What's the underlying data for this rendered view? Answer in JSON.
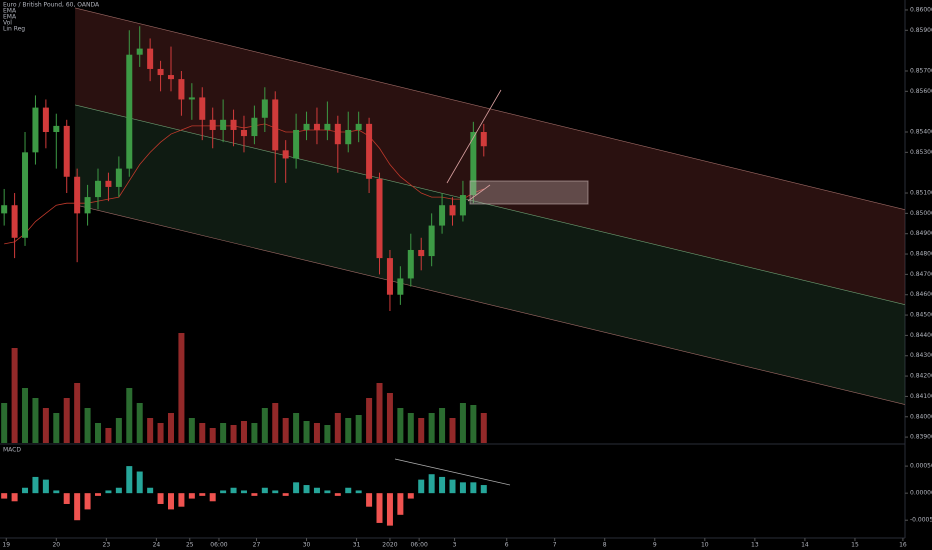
{
  "chart_data": [
    {
      "type": "candlestick",
      "legend": [
        "Euro / British Pound, 60, OANDA",
        "EMA",
        "EMA",
        "Vol",
        "Lin Reg"
      ],
      "up_color": "#3d9a45",
      "down_color": "#d13b3b",
      "x": [
        2,
        7,
        12,
        17,
        22,
        27,
        32,
        37,
        42,
        47,
        52,
        57,
        62,
        67,
        72,
        77,
        82,
        87,
        92,
        97,
        102,
        107,
        112,
        117,
        122,
        127,
        132,
        137,
        142,
        147,
        152,
        157,
        162,
        167,
        172,
        177,
        182,
        187,
        192,
        197,
        202,
        207,
        212,
        217,
        222,
        227,
        232
      ],
      "open": [
        0.85,
        0.8504,
        0.8488,
        0.853,
        0.8552,
        0.854,
        0.8543,
        0.8518,
        0.85,
        0.8508,
        0.8516,
        0.8513,
        0.8522,
        0.8578,
        0.8581,
        0.8571,
        0.8568,
        0.8566,
        0.8556,
        0.8557,
        0.8546,
        0.8541,
        0.8546,
        0.8541,
        0.8538,
        0.8547,
        0.8556,
        0.8531,
        0.8527,
        0.8541,
        0.8544,
        0.8541,
        0.8544,
        0.8534,
        0.8541,
        0.8544,
        0.8517,
        0.8478,
        0.846,
        0.8468,
        0.8482,
        0.8479,
        0.8494,
        0.8504,
        0.8499,
        0.8509,
        0.854
      ],
      "high": [
        0.8512,
        0.851,
        0.854,
        0.8558,
        0.8556,
        0.8549,
        0.8546,
        0.8522,
        0.8514,
        0.8522,
        0.852,
        0.8528,
        0.859,
        0.8592,
        0.8586,
        0.8575,
        0.8582,
        0.857,
        0.8564,
        0.8562,
        0.8552,
        0.8556,
        0.8551,
        0.8548,
        0.8553,
        0.8562,
        0.856,
        0.8536,
        0.8549,
        0.855,
        0.8552,
        0.8555,
        0.8548,
        0.855,
        0.855,
        0.8547,
        0.852,
        0.8482,
        0.8474,
        0.849,
        0.8488,
        0.85,
        0.851,
        0.8508,
        0.8516,
        0.8545,
        0.8544
      ],
      "low": [
        0.8494,
        0.8478,
        0.8484,
        0.8524,
        0.8532,
        0.8522,
        0.851,
        0.8476,
        0.8494,
        0.8502,
        0.8506,
        0.8508,
        0.8518,
        0.8572,
        0.8565,
        0.856,
        0.856,
        0.8548,
        0.8546,
        0.8536,
        0.8532,
        0.8535,
        0.8533,
        0.853,
        0.8534,
        0.854,
        0.8515,
        0.8515,
        0.8522,
        0.8536,
        0.8534,
        0.8536,
        0.852,
        0.853,
        0.8535,
        0.851,
        0.847,
        0.8452,
        0.8455,
        0.8464,
        0.8472,
        0.8474,
        0.849,
        0.8494,
        0.8496,
        0.8505,
        0.8528
      ],
      "close": [
        0.8504,
        0.8488,
        0.853,
        0.8552,
        0.854,
        0.8543,
        0.8518,
        0.85,
        0.8508,
        0.8516,
        0.8513,
        0.8522,
        0.8578,
        0.8581,
        0.8571,
        0.8568,
        0.8566,
        0.8556,
        0.8557,
        0.8546,
        0.8541,
        0.8546,
        0.8541,
        0.8538,
        0.8547,
        0.8556,
        0.8531,
        0.8527,
        0.8541,
        0.8544,
        0.8541,
        0.8544,
        0.8534,
        0.8541,
        0.8544,
        0.8517,
        0.8478,
        0.846,
        0.8468,
        0.8482,
        0.8479,
        0.8494,
        0.8504,
        0.8499,
        0.8509,
        0.854,
        0.8533
      ],
      "volume": [
        40,
        95,
        55,
        45,
        35,
        30,
        45,
        60,
        35,
        20,
        15,
        25,
        55,
        40,
        25,
        20,
        30,
        110,
        25,
        20,
        15,
        20,
        18,
        22,
        20,
        35,
        40,
        25,
        30,
        22,
        20,
        18,
        30,
        25,
        28,
        45,
        60,
        50,
        35,
        30,
        25,
        30,
        35,
        25,
        40,
        38,
        30
      ],
      "ema": {
        "color": "#c0392b",
        "values": [
          0.8485,
          0.8486,
          0.849,
          0.8496,
          0.85,
          0.8504,
          0.8505,
          0.8505,
          0.8505,
          0.8506,
          0.8507,
          0.8508,
          0.8516,
          0.8524,
          0.853,
          0.8535,
          0.8539,
          0.8541,
          0.8543,
          0.8543,
          0.8543,
          0.8543,
          0.8543,
          0.8542,
          0.8543,
          0.8544,
          0.8542,
          0.854,
          0.854,
          0.8541,
          0.8541,
          0.8541,
          0.854,
          0.854,
          0.8541,
          0.8538,
          0.8532,
          0.8524,
          0.8518,
          0.8514,
          0.851,
          0.8508,
          0.8508,
          0.8507,
          0.8507,
          0.851,
          0.8512
        ]
      },
      "regression": {
        "x": [
          36,
          434
        ],
        "upper": [
          0.8601,
          0.85018
        ],
        "middle": [
          0.85533,
          0.84551
        ],
        "lower": [
          0.85042,
          0.8406
        ]
      },
      "xlim": [
        0,
        434
      ],
      "xticks": [
        {
          "value": 3,
          "label": "19"
        },
        {
          "value": 27,
          "label": "20"
        },
        {
          "value": 51,
          "label": "23"
        },
        {
          "value": 75,
          "label": "24"
        },
        {
          "value": 91,
          "label": "25"
        },
        {
          "value": 105,
          "label": "06:00"
        },
        {
          "value": 123,
          "label": "27"
        },
        {
          "value": 147,
          "label": "30"
        },
        {
          "value": 171,
          "label": "31"
        },
        {
          "value": 187,
          "label": "2020"
        },
        {
          "value": 201,
          "label": "06:00"
        },
        {
          "value": 218,
          "label": "3"
        },
        {
          "value": 243,
          "label": "6"
        },
        {
          "value": 266,
          "label": "7"
        },
        {
          "value": 290,
          "label": "8"
        },
        {
          "value": 314,
          "label": "9"
        },
        {
          "value": 338,
          "label": "10"
        },
        {
          "value": 362,
          "label": "13"
        },
        {
          "value": 386,
          "label": "14"
        },
        {
          "value": 410,
          "label": "15"
        },
        {
          "value": 433,
          "label": "16"
        }
      ],
      "ylim": [
        0.83871,
        0.86049
      ],
      "yticks": [
        {
          "value": 0.86,
          "label": "0.86000"
        },
        {
          "value": 0.859,
          "label": "0.85900"
        },
        {
          "value": 0.857,
          "label": "0.85700"
        },
        {
          "value": 0.856,
          "label": "0.85600"
        },
        {
          "value": 0.854,
          "label": "0.85400"
        },
        {
          "value": 0.853,
          "label": "0.85300"
        },
        {
          "value": 0.851,
          "label": "0.85100"
        },
        {
          "value": 0.85,
          "label": "0.85000"
        },
        {
          "value": 0.849,
          "label": "0.84900"
        },
        {
          "value": 0.848,
          "label": "0.84800"
        },
        {
          "value": 0.847,
          "label": "0.84700"
        },
        {
          "value": 0.846,
          "label": "0.84600"
        },
        {
          "value": 0.845,
          "label": "0.84500"
        },
        {
          "value": 0.844,
          "label": "0.84400"
        },
        {
          "value": 0.843,
          "label": "0.84300"
        },
        {
          "value": 0.842,
          "label": "0.84200"
        },
        {
          "value": 0.841,
          "label": "0.84100"
        },
        {
          "value": 0.84,
          "label": "0.84000"
        },
        {
          "value": 0.839,
          "label": "0.83900"
        }
      ]
    },
    {
      "type": "histogram",
      "title": "MACD",
      "pos_color": "#26a69a",
      "neg_color": "#ef5350",
      "values": [
        -0.0001,
        -0.00015,
        0.0001,
        0.0003,
        0.00025,
        5e-05,
        -0.0002,
        -0.0005,
        -0.0003,
        -5e-05,
        5e-05,
        0.0001,
        0.0005,
        0.0004,
        0.0001,
        -0.0002,
        -0.0003,
        -0.00025,
        -0.0001,
        -5e-05,
        -0.00015,
        5e-05,
        0.0001,
        5e-05,
        -5e-05,
        0.0001,
        5e-05,
        -5e-05,
        0.0002,
        0.00015,
        0.0001,
        5e-05,
        -5e-05,
        0.0001,
        5e-05,
        -0.00025,
        -0.00055,
        -0.0006,
        -0.0004,
        -0.0001,
        0.00025,
        0.00035,
        0.0003,
        0.00025,
        0.0002,
        0.0002,
        0.00015
      ],
      "ylim": [
        -0.00081,
        0.00089
      ],
      "yticks": [
        {
          "value": 0.0005,
          "label": "0.00050"
        },
        {
          "value": 0,
          "label": "0.00000"
        },
        {
          "value": -0.0005,
          "label": "-0.00050"
        }
      ]
    }
  ]
}
